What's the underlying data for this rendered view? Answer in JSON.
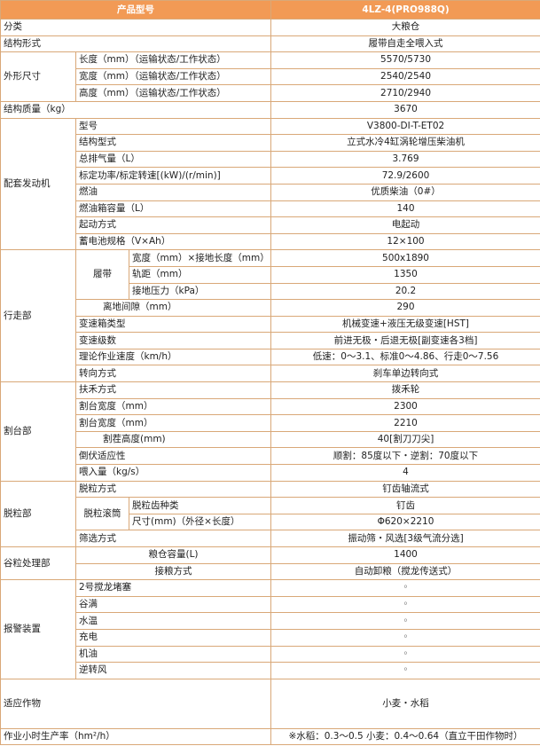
{
  "table": {
    "header": [
      "产品型号",
      "4LZ-4(PRO988Q)"
    ],
    "rows": [
      [
        "分类",
        "大粮仓"
      ],
      [
        "结构形式",
        "履带自走全喂入式"
      ],
      [
        "外形尺寸",
        "长度（mm）（运输状态/工作状态）",
        "5570/5730"
      ],
      [
        "宽度（mm）（运输状态/工作状态）",
        "2540/2540"
      ],
      [
        "高度（mm）（运输状态/工作状态）",
        "2710/2940"
      ],
      [
        "结构质量（kg）",
        "3670"
      ],
      [
        "配套发动机",
        "型号",
        "V3800-DI-T-ET02"
      ],
      [
        "结构型式",
        "立式水冷4缸涡轮增压柴油机"
      ],
      [
        "总排气量（L）",
        "3.769"
      ],
      [
        "标定功率/标定转速[(kW)/(r/min)]",
        "72.9/2600"
      ],
      [
        "燃油",
        "优质柴油（0#）"
      ],
      [
        "燃油箱容量（L）",
        "140"
      ],
      [
        "起动方式",
        "电起动"
      ],
      [
        "蓄电池规格（V×Ah）",
        "12×100"
      ],
      [
        "行走部",
        "履带",
        "宽度（mm）×接地长度（mm）",
        "500x1890"
      ],
      [
        "轨距（mm）",
        "1350"
      ],
      [
        "接地压力（kPa）",
        "20.2"
      ],
      [
        "离地间隙（mm）",
        "290"
      ],
      [
        "变速箱类型",
        "机械变速+液压无级变速[HST]"
      ],
      [
        "变速级数",
        "前进无极・后退无极[副变速各3档]"
      ],
      [
        "理论作业速度（km/h）",
        "低速：0～3.1、标准0～4.86、行走0～7.56"
      ],
      [
        "转向方式",
        "刹车单边转向式"
      ],
      [
        "割台部",
        "扶禾方式",
        "拨禾轮"
      ],
      [
        "割台宽度（mm）",
        "2300"
      ],
      [
        "割台宽度（mm）",
        "2210"
      ],
      [
        "割茬高度(mm)",
        "40[割刀刀尖]"
      ],
      [
        "倒伏适应性",
        "顺割：85度以下・逆割：70度以下"
      ],
      [
        "喂入量（kg/s）",
        "4"
      ],
      [
        "脱粒部",
        "脱粒方式",
        "钉齿轴流式"
      ],
      [
        "脱粒滚筒",
        "脱粒齿种类",
        "钉齿"
      ],
      [
        "尺寸(mm)（外径×长度）",
        "Φ620×2210"
      ],
      [
        "筛选方式",
        "振动筛・风选[3级气流分选]"
      ],
      [
        "谷粒处理部",
        "粮仓容量(L)",
        "1400"
      ],
      [
        "接粮方式",
        "自动卸粮（搅龙传送式）"
      ],
      [
        "报警装置",
        "2号搅龙堵塞",
        "◦"
      ],
      [
        "谷满",
        "◦"
      ],
      [
        "水温",
        "◦"
      ],
      [
        "充电",
        "◦"
      ],
      [
        "机油",
        "◦"
      ],
      [
        "逆转风",
        "◦"
      ],
      [
        "适应作物",
        "小麦・水稻"
      ],
      [
        "作业小时生产率（hm²/h）",
        "※水稻：0.3～0.5 小麦：0.4～0.64（直立干田作物时）"
      ]
    ]
  }
}
